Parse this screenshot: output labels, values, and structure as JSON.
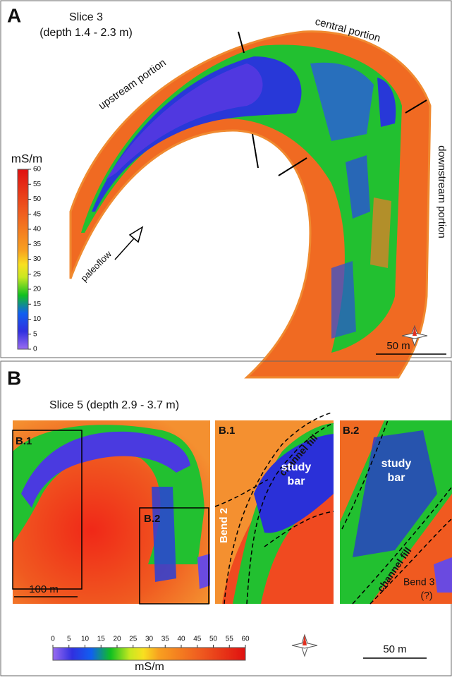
{
  "panel_a": {
    "label": "A",
    "title": "Slice 3",
    "subtitle": "(depth 1.4 - 2.3 m)",
    "annotations": {
      "upstream": "upstream portion",
      "central": "central portion",
      "downstream": "downstream portion",
      "flow": "paleoflow"
    },
    "scale_bar": "50 m",
    "colorbar": {
      "label": "mS/m",
      "lim": [
        0,
        60
      ],
      "ticks": [
        0,
        5,
        10,
        15,
        20,
        25,
        30,
        35,
        40,
        45,
        50,
        55,
        60
      ]
    }
  },
  "panel_b": {
    "label": "B",
    "title": "Slice 5 (depth 2.9 - 3.7 m)",
    "box_labels": [
      "B.1",
      "B.2"
    ],
    "scale_bar_main": "100 m",
    "inset_1": {
      "label": "B.1",
      "channel": "channel fill",
      "bar_lines": [
        "study",
        "bar"
      ],
      "bend": "Bend 2"
    },
    "inset_2": {
      "label": "B.2",
      "channel": "channel fill",
      "bar_lines": [
        "study",
        "bar"
      ],
      "bend": "Bend 3",
      "bend_note": "(?)"
    },
    "scale_bar": "50 m",
    "colorbar": {
      "label": "mS/m",
      "lim": [
        0,
        60
      ],
      "ticks": [
        0,
        5,
        10,
        15,
        20,
        25,
        30,
        35,
        40,
        45,
        50,
        55,
        60
      ]
    }
  }
}
